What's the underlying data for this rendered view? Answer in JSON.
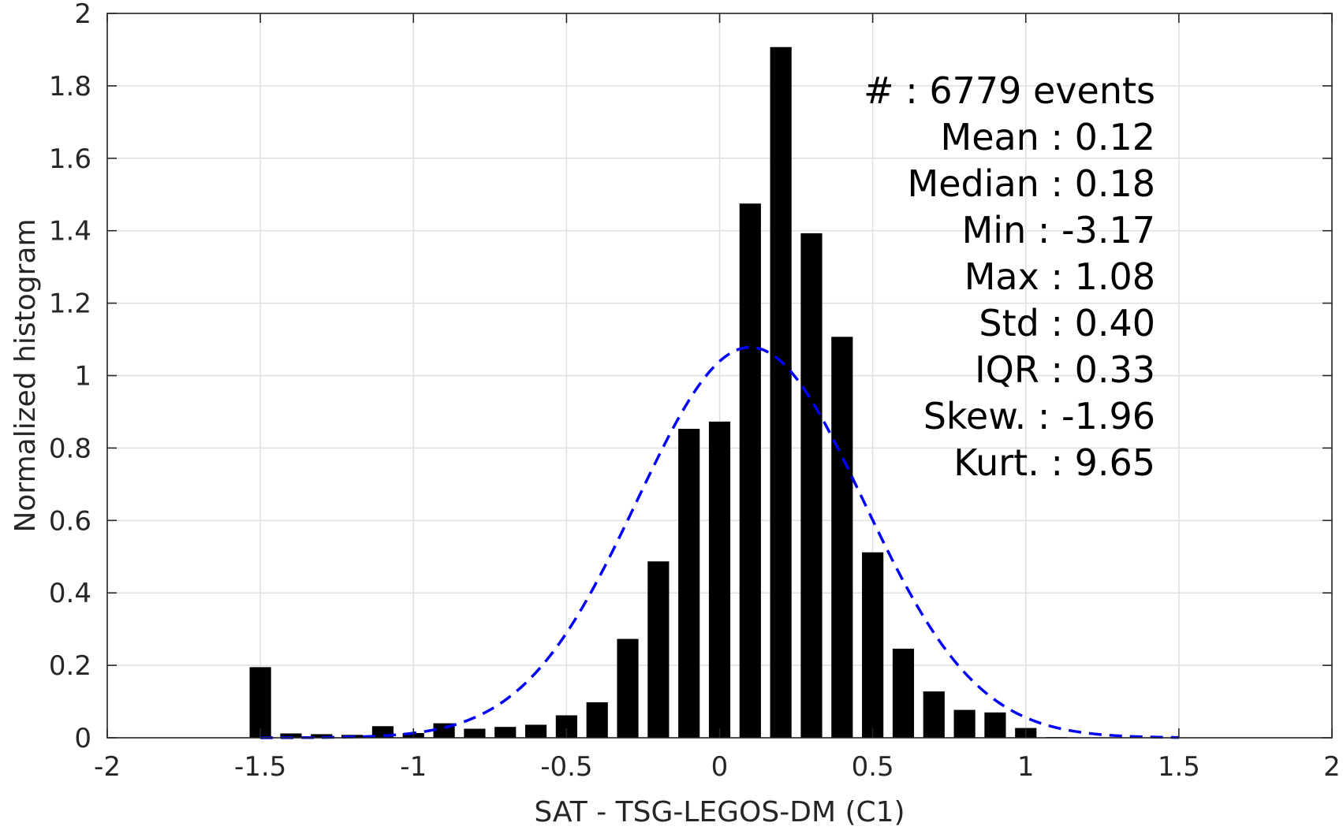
{
  "chart_data": {
    "type": "bar",
    "xlabel": "SAT - TSG-LEGOS-DM (C1)",
    "ylabel": "Normalized histogram",
    "xlim": [
      -2,
      2
    ],
    "ylim": [
      0,
      2
    ],
    "grid": true,
    "xticks": [
      -2,
      -1.5,
      -1,
      -0.5,
      0,
      0.5,
      1,
      1.5,
      2
    ],
    "xtick_labels": [
      "-2",
      "-1.5",
      "-1",
      "-0.5",
      "0",
      "0.5",
      "1",
      "1.5",
      "2"
    ],
    "yticks": [
      0,
      0.2,
      0.4,
      0.6,
      0.8,
      1,
      1.2,
      1.4,
      1.6,
      1.8,
      2
    ],
    "ytick_labels": [
      "0",
      "0.2",
      "0.4",
      "0.6",
      "0.8",
      "1",
      "1.2",
      "1.4",
      "1.6",
      "1.8",
      "2"
    ],
    "bar_width": 0.07,
    "bars": [
      {
        "x": -1.5,
        "y": 0.195
      },
      {
        "x": -1.4,
        "y": 0.012
      },
      {
        "x": -1.3,
        "y": 0.01
      },
      {
        "x": -1.2,
        "y": 0.008
      },
      {
        "x": -1.1,
        "y": 0.032
      },
      {
        "x": -1.0,
        "y": 0.013
      },
      {
        "x": -0.9,
        "y": 0.04
      },
      {
        "x": -0.8,
        "y": 0.025
      },
      {
        "x": -0.7,
        "y": 0.03
      },
      {
        "x": -0.6,
        "y": 0.036
      },
      {
        "x": -0.5,
        "y": 0.062
      },
      {
        "x": -0.4,
        "y": 0.098
      },
      {
        "x": -0.3,
        "y": 0.273
      },
      {
        "x": -0.2,
        "y": 0.487
      },
      {
        "x": -0.1,
        "y": 0.853
      },
      {
        "x": 0.0,
        "y": 0.873
      },
      {
        "x": 0.1,
        "y": 1.475
      },
      {
        "x": 0.2,
        "y": 1.907
      },
      {
        "x": 0.3,
        "y": 1.393
      },
      {
        "x": 0.4,
        "y": 1.107
      },
      {
        "x": 0.5,
        "y": 0.512
      },
      {
        "x": 0.6,
        "y": 0.246
      },
      {
        "x": 0.7,
        "y": 0.128
      },
      {
        "x": 0.8,
        "y": 0.077
      },
      {
        "x": 0.9,
        "y": 0.07
      },
      {
        "x": 1.0,
        "y": 0.027
      },
      {
        "x": 1.1,
        "y": 0.002
      }
    ],
    "fit_curve": {
      "style": "dashed",
      "color": "#0000ff",
      "mean": 0.1,
      "std": 0.37,
      "x_range": [
        -1.5,
        1.5
      ]
    },
    "annotations": [
      {
        "label": "#",
        "value": ": 6779 events"
      },
      {
        "label": "Mean",
        "value": ": 0.12"
      },
      {
        "label": "Median",
        "value": ": 0.18"
      },
      {
        "label": "Min",
        "value": ": -3.17"
      },
      {
        "label": "Max",
        "value": ": 1.08"
      },
      {
        "label": "Std",
        "value": ": 0.40"
      },
      {
        "label": "IQR",
        "value": ": 0.33"
      },
      {
        "label": "Skew.",
        "value": ": -1.96"
      },
      {
        "label": "Kurt.",
        "value": ": 9.65"
      }
    ]
  }
}
